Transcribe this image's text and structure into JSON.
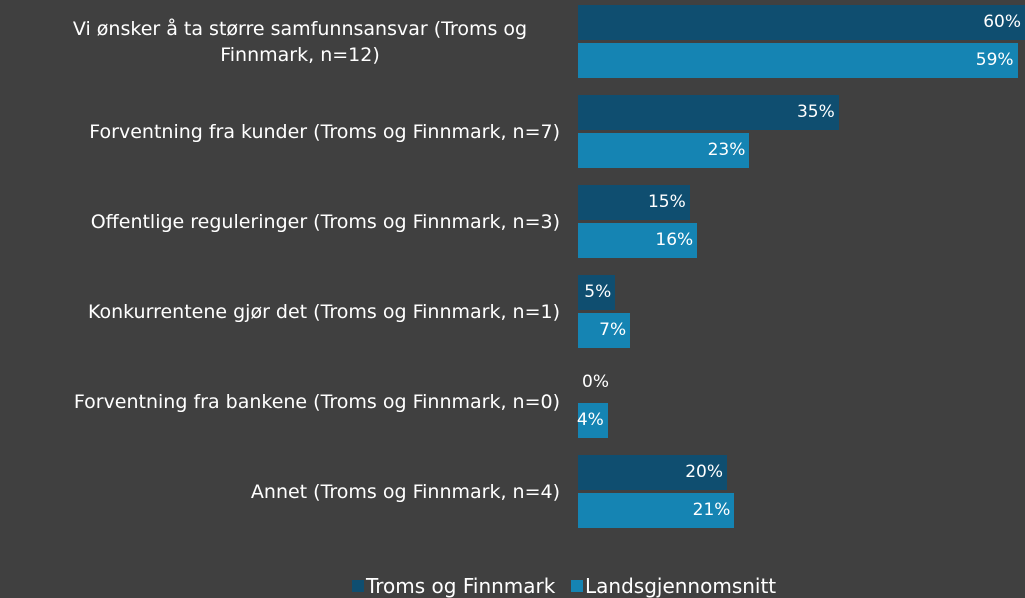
{
  "chart_data": {
    "type": "bar",
    "orientation": "horizontal",
    "categories": [
      "Vi ønsker å ta større samfunnsansvar (Troms og Finnmark, n=12)",
      "Forventning fra kunder (Troms og Finnmark, n=7)",
      "Offentlige reguleringer (Troms og Finnmark, n=3)",
      "Konkurrentene gjør det (Troms og Finnmark, n=1)",
      "Forventning fra bankene (Troms og Finnmark, n=0)",
      "Annet (Troms og Finnmark, n=4)"
    ],
    "series": [
      {
        "name": "Troms og Finnmark",
        "color": "#0f4e70",
        "values": [
          60,
          35,
          15,
          5,
          0,
          20
        ],
        "value_labels": [
          "60%",
          "35%",
          "15%",
          "5%",
          "0%",
          "20%"
        ]
      },
      {
        "name": "Landsgjennomsnitt",
        "color": "#1584b3",
        "values": [
          59,
          23,
          16,
          7,
          4,
          21
        ],
        "value_labels": [
          "59%",
          "23%",
          "16%",
          "7%",
          "4%",
          "21%"
        ]
      }
    ],
    "xlim": [
      0,
      60
    ],
    "legend": "bottom"
  }
}
